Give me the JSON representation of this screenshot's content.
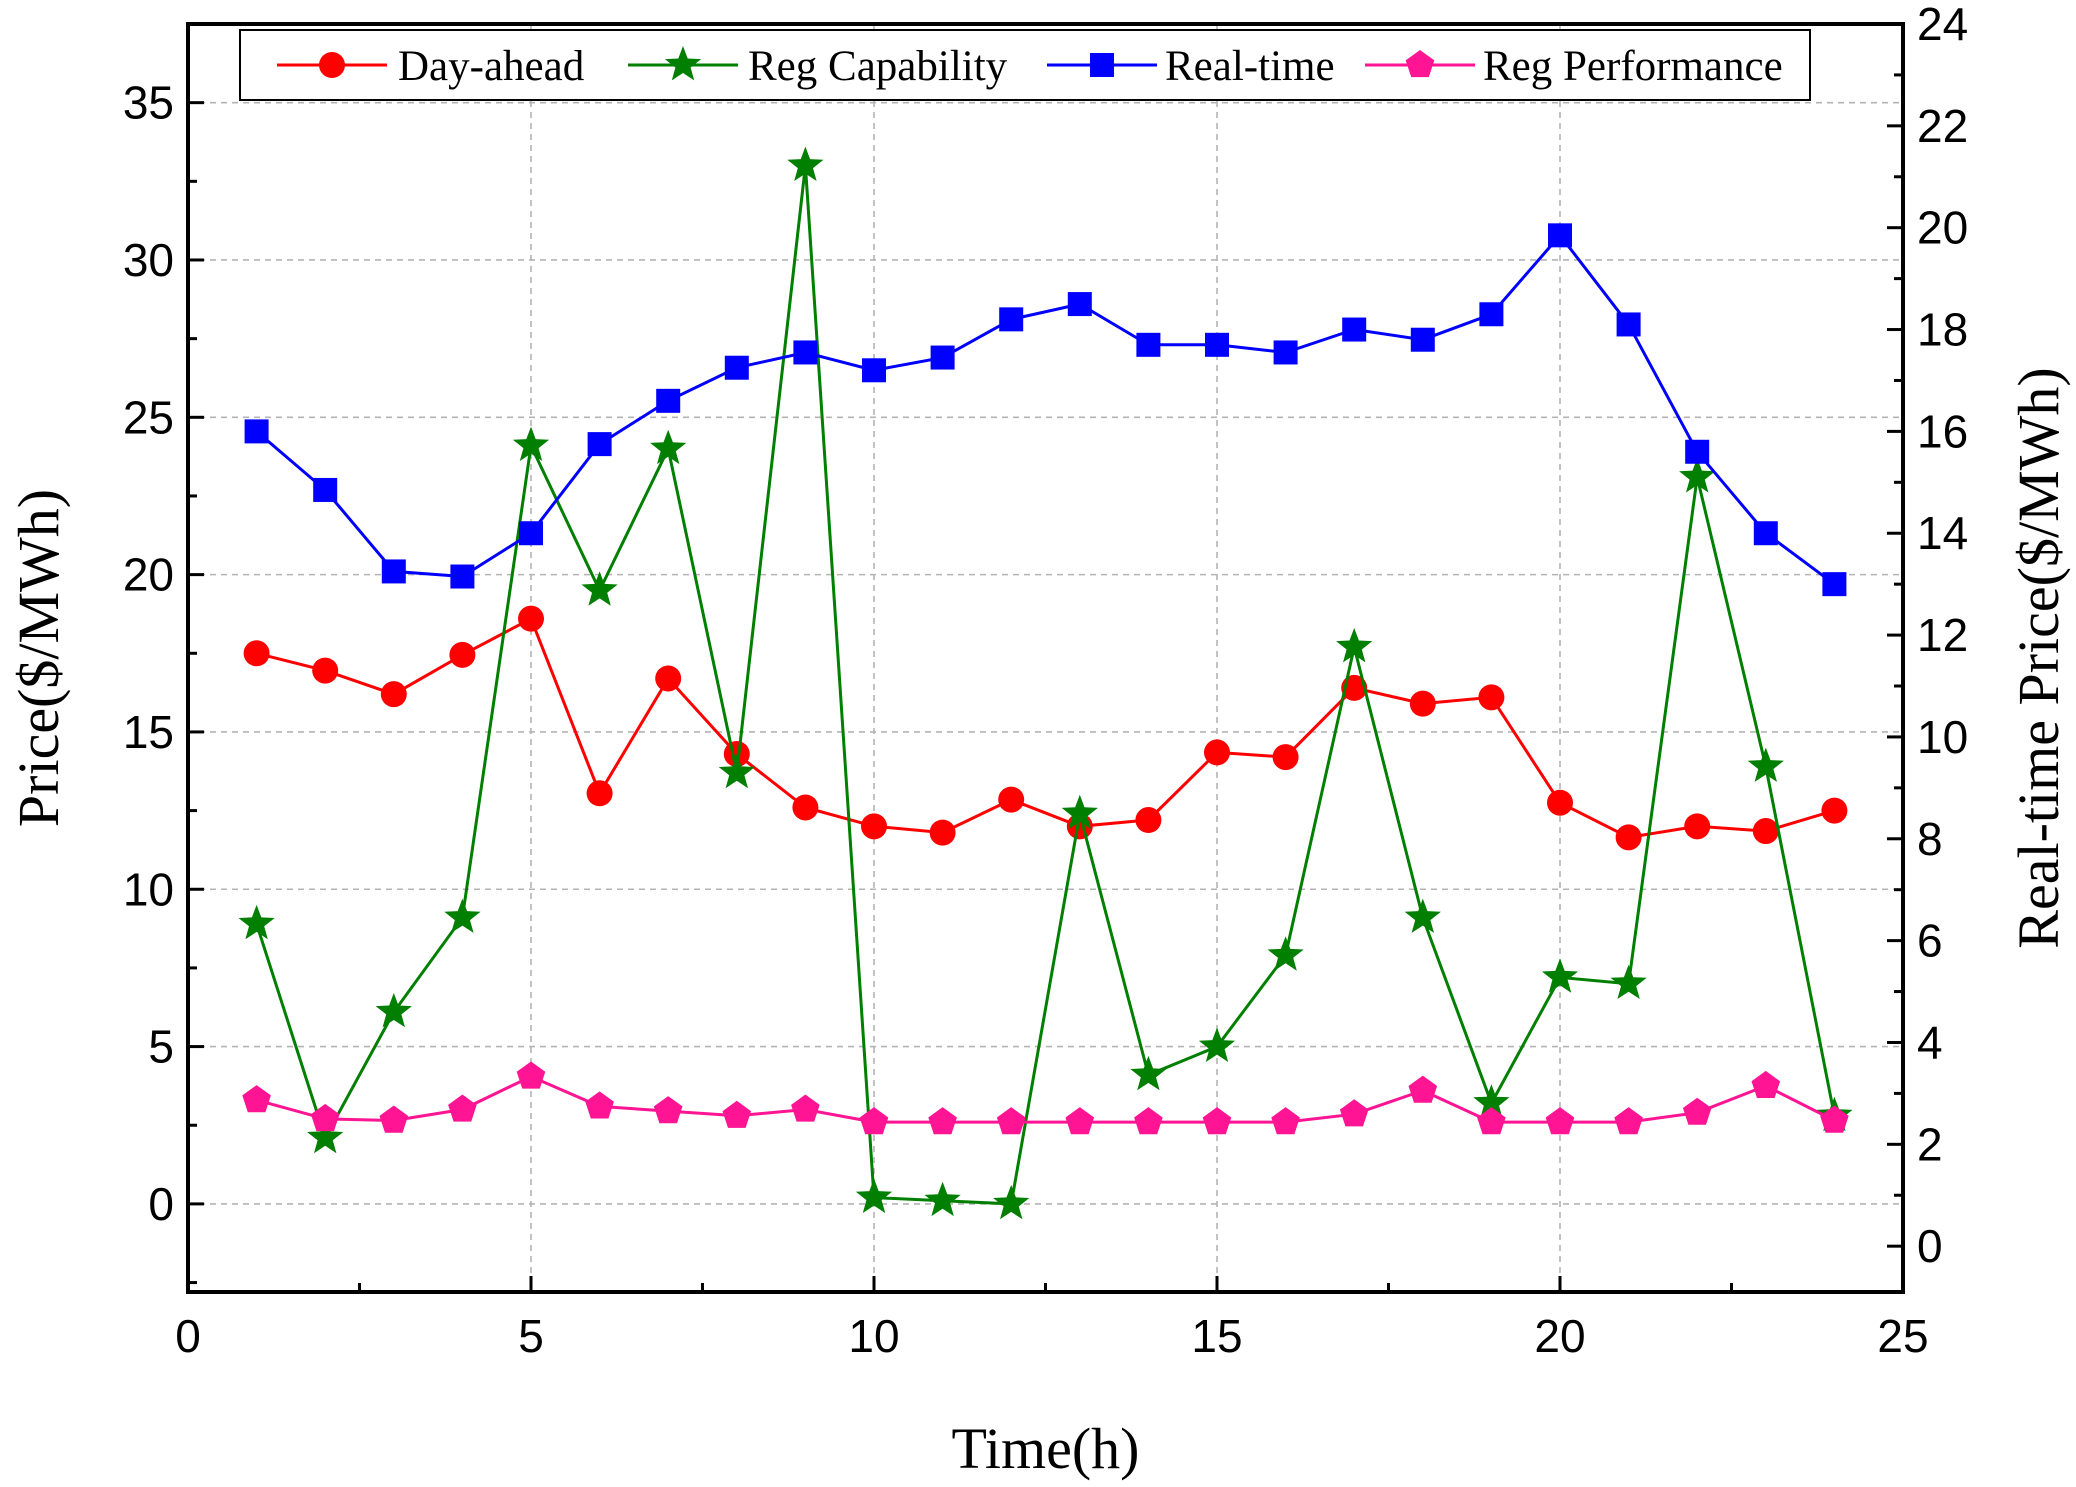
{
  "chart_data": {
    "type": "line",
    "title": "",
    "xlabel": "Time(h)",
    "ylabel": "Price($/MWh)",
    "y2label": "Real-time Price($/MWh)",
    "xlim": [
      0,
      25
    ],
    "ylim": [
      -2.8,
      37.5
    ],
    "y2lim": [
      -0.9,
      24
    ],
    "grid": true,
    "legend_position": "top",
    "x_ticks": [
      0,
      5,
      10,
      15,
      20,
      25
    ],
    "y_ticks": [
      0,
      5,
      10,
      15,
      20,
      25,
      30,
      35
    ],
    "y2_ticks": [
      0,
      2,
      4,
      6,
      8,
      10,
      12,
      14,
      16,
      18,
      20,
      22,
      24
    ],
    "x": [
      1,
      2,
      3,
      4,
      5,
      6,
      7,
      8,
      9,
      10,
      11,
      12,
      13,
      14,
      15,
      16,
      17,
      18,
      19,
      20,
      21,
      22,
      23,
      24
    ],
    "series": [
      {
        "name": "Day-ahead",
        "axis": "left",
        "color": "#ff0000",
        "marker": "circle",
        "values": [
          17.5,
          16.95,
          16.2,
          17.45,
          18.6,
          13.05,
          16.7,
          14.3,
          12.6,
          12.0,
          11.8,
          12.85,
          12.0,
          12.2,
          14.35,
          14.2,
          16.4,
          15.9,
          16.1,
          12.75,
          11.65,
          12.0,
          11.85,
          12.5
        ]
      },
      {
        "name": "Reg Capability",
        "axis": "left",
        "color": "#007f00",
        "marker": "star",
        "values": [
          8.9,
          2.1,
          6.1,
          9.1,
          24.1,
          19.5,
          24.0,
          13.7,
          33.0,
          0.2,
          0.1,
          0.0,
          12.4,
          4.1,
          5.0,
          7.9,
          17.7,
          9.1,
          3.2,
          7.2,
          7.0,
          23.1,
          13.9,
          2.8
        ]
      },
      {
        "name": "Real-time",
        "axis": "right",
        "color": "#0000ff",
        "marker": "square",
        "values": [
          16.0,
          14.85,
          13.25,
          13.15,
          14.0,
          15.75,
          16.6,
          17.25,
          17.55,
          17.2,
          17.45,
          18.2,
          18.5,
          17.7,
          17.7,
          17.55,
          18.0,
          17.8,
          18.3,
          19.85,
          18.1,
          15.6,
          14.0,
          13.0
        ]
      },
      {
        "name": "Reg Performance",
        "axis": "left",
        "color": "#ff1493",
        "marker": "pentagon",
        "values": [
          3.3,
          2.7,
          2.65,
          3.0,
          4.05,
          3.1,
          2.95,
          2.8,
          3.0,
          2.6,
          2.6,
          2.6,
          2.6,
          2.6,
          2.6,
          2.6,
          2.85,
          3.6,
          2.6,
          2.6,
          2.6,
          2.9,
          3.75,
          2.65
        ]
      }
    ]
  }
}
